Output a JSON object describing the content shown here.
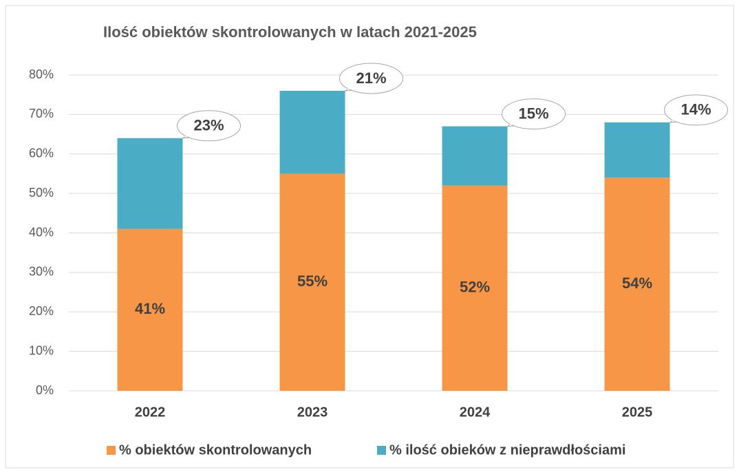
{
  "chart_data": {
    "type": "stacked_bar",
    "title": "Ilość obiektów skontrolowanych w latach 2021-2025",
    "categories": [
      "2022",
      "2023",
      "2024",
      "2025"
    ],
    "series": [
      {
        "name": "% obiektów skontrolowanych",
        "color": "#f79646",
        "values": [
          41,
          55,
          52,
          54
        ],
        "value_labels": [
          "41%",
          "55%",
          "52%",
          "54%"
        ]
      },
      {
        "name": "% ilość obieków z nieprawdłościami",
        "color": "#4bacc6",
        "values": [
          23,
          21,
          15,
          14
        ],
        "value_labels": [
          "23%",
          "21%",
          "15%",
          "14%"
        ]
      }
    ],
    "ylim": [
      0,
      80
    ],
    "yticks": [
      {
        "value": 0,
        "label": "0%"
      },
      {
        "value": 10,
        "label": "10%"
      },
      {
        "value": 20,
        "label": "20%"
      },
      {
        "value": 30,
        "label": "30%"
      },
      {
        "value": 40,
        "label": "40%"
      },
      {
        "value": 50,
        "label": "50%"
      },
      {
        "value": 60,
        "label": "60%"
      },
      {
        "value": 70,
        "label": "70%"
      },
      {
        "value": 80,
        "label": "80%"
      }
    ],
    "grid": true,
    "legend": "bottom"
  }
}
